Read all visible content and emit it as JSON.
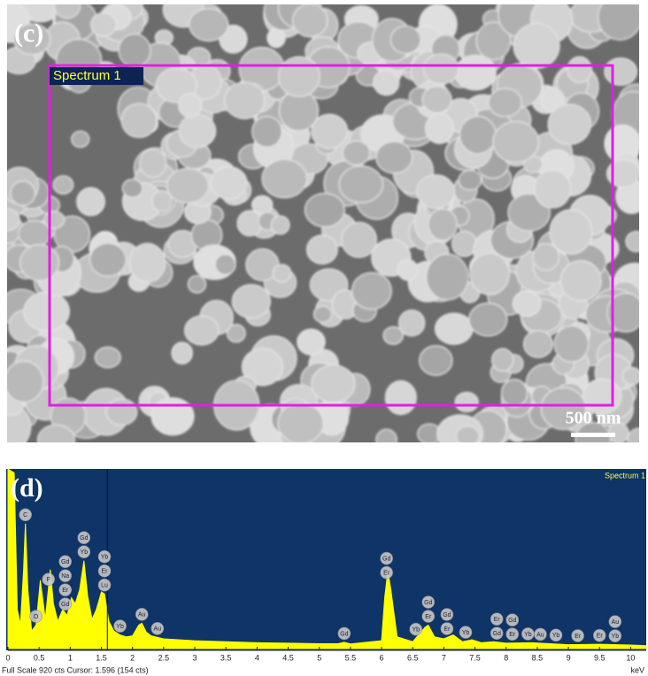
{
  "panel_c": {
    "label": "(c)",
    "region_label": "Spectrum 1",
    "scale_bar": "500 nm"
  },
  "chart_data": {
    "type": "area",
    "label": "(d)",
    "title": "Spectrum 1",
    "x_label": "keV",
    "footer": "Full Scale 920 cts Cursor: 1.596  (154 cts)",
    "xlim": [
      0,
      10.25
    ],
    "xticks": [
      0,
      0.5,
      1,
      1.5,
      2,
      2.5,
      3,
      3.5,
      4,
      4.5,
      5,
      5.5,
      6,
      6.5,
      7,
      7.5,
      8,
      8.5,
      9,
      9.5,
      10
    ],
    "ylim": [
      0,
      920
    ],
    "cursor": 1.596,
    "color": "#ffff00",
    "x": [
      0,
      0.1,
      0.15,
      0.2,
      0.25,
      0.28,
      0.32,
      0.38,
      0.45,
      0.52,
      0.56,
      0.6,
      0.68,
      0.73,
      0.8,
      0.88,
      0.95,
      1.02,
      1.08,
      1.15,
      1.22,
      1.28,
      1.35,
      1.42,
      1.5,
      1.55,
      1.62,
      1.7,
      1.8,
      1.9,
      2.0,
      2.1,
      2.15,
      2.22,
      2.3,
      2.5,
      3.0,
      3.5,
      4,
      4.5,
      5,
      5.3,
      5.4,
      5.5,
      6.0,
      6.05,
      6.1,
      6.15,
      6.25,
      6.5,
      6.7,
      6.75,
      6.85,
      7.0,
      7.15,
      7.3,
      7.45,
      7.6,
      7.8,
      8.0,
      8.4,
      9.0,
      9.5,
      10.0,
      10.25
    ],
    "values": [
      920,
      900,
      200,
      120,
      400,
      640,
      300,
      90,
      120,
      350,
      250,
      150,
      405,
      230,
      140,
      200,
      170,
      260,
      230,
      300,
      450,
      270,
      150,
      200,
      290,
      280,
      140,
      90,
      70,
      60,
      65,
      120,
      130,
      85,
      65,
      50,
      40,
      35,
      30,
      28,
      25,
      25,
      32,
      24,
      40,
      260,
      400,
      300,
      60,
      35,
      110,
      120,
      60,
      50,
      70,
      35,
      45,
      30,
      35,
      28,
      30,
      20,
      22,
      18,
      15
    ],
    "peak_labels": [
      {
        "x": 0.28,
        "labels": [
          "C"
        ]
      },
      {
        "x": 0.45,
        "labels": [
          "O"
        ]
      },
      {
        "x": 0.65,
        "labels": [
          "F"
        ]
      },
      {
        "x": 0.92,
        "labels": [
          "Gd",
          "Na",
          "Er",
          "Gd"
        ]
      },
      {
        "x": 1.22,
        "labels": [
          "Gd",
          "Yb"
        ]
      },
      {
        "x": 1.55,
        "labels": [
          "Yb",
          "Er",
          "Lu"
        ]
      },
      {
        "x": 1.8,
        "labels": [
          "Yb"
        ]
      },
      {
        "x": 2.15,
        "labels": [
          "Au"
        ]
      },
      {
        "x": 2.4,
        "labels": [
          "Au"
        ]
      },
      {
        "x": 5.4,
        "labels": [
          "Gd"
        ]
      },
      {
        "x": 6.08,
        "labels": [
          "Gd",
          "Er"
        ]
      },
      {
        "x": 6.55,
        "labels": [
          "Yb"
        ]
      },
      {
        "x": 6.75,
        "labels": [
          "Gd",
          "Er"
        ]
      },
      {
        "x": 7.05,
        "labels": [
          "Gd",
          "Er"
        ]
      },
      {
        "x": 7.35,
        "labels": [
          "Yb"
        ]
      },
      {
        "x": 7.85,
        "labels": [
          "Er",
          "Gd"
        ]
      },
      {
        "x": 8.1,
        "labels": [
          "Gd",
          "Er"
        ]
      },
      {
        "x": 8.35,
        "labels": [
          "Yb"
        ]
      },
      {
        "x": 8.55,
        "labels": [
          "Au"
        ]
      },
      {
        "x": 8.8,
        "labels": [
          "Yb"
        ]
      },
      {
        "x": 9.15,
        "labels": [
          "Er"
        ]
      },
      {
        "x": 9.5,
        "labels": [
          "Er"
        ]
      },
      {
        "x": 9.75,
        "labels": [
          "Au",
          "Yb"
        ]
      }
    ]
  }
}
